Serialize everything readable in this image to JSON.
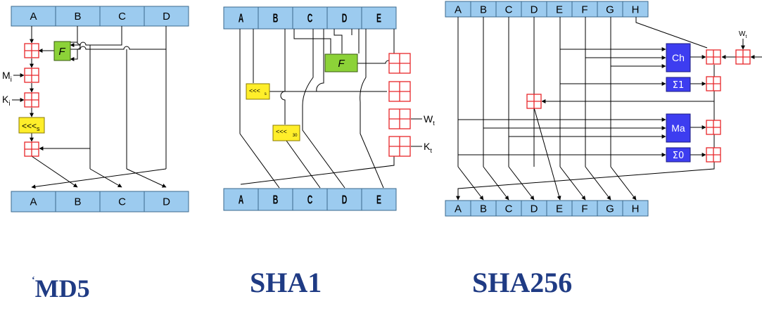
{
  "md5": {
    "caption": "MD5",
    "caption_prefix": "‘",
    "registers_top": [
      "A",
      "B",
      "C",
      "D"
    ],
    "registers_bottom": [
      "A",
      "B",
      "C",
      "D"
    ],
    "function_label": "F",
    "inputs": [
      "M",
      "K"
    ],
    "input_subscripts": [
      "i",
      "i"
    ],
    "rotate_label": "<<<",
    "rotate_sub": "s"
  },
  "sha1": {
    "caption": "SHA1",
    "registers_top": [
      "A",
      "B",
      "C",
      "D",
      "E"
    ],
    "registers_bottom": [
      "A",
      "B",
      "C",
      "D",
      "E"
    ],
    "function_label": "F",
    "rotate_s_label": "<<<",
    "rotate_s_sub": "s",
    "rotate_30_label": "<<<",
    "rotate_30_sub": "30",
    "inputs": [
      "W",
      "K"
    ],
    "input_subscripts": [
      "t",
      "t"
    ]
  },
  "sha256": {
    "caption": "SHA256",
    "registers_top": [
      "A",
      "B",
      "C",
      "D",
      "E",
      "F",
      "G",
      "H"
    ],
    "registers_bottom": [
      "A",
      "B",
      "C",
      "D",
      "E",
      "F",
      "G",
      "H"
    ],
    "functions": [
      "Ch",
      "Σ1",
      "Ma",
      "Σ0"
    ],
    "input": "W",
    "input_subscript": "t"
  },
  "colors": {
    "register_fill": "#9ccbef",
    "register_stroke": "#3b6a8c",
    "function_green": "#8cd238",
    "rotate_yellow": "#ffee2a",
    "sha256_block": "#3d3df0",
    "adder_red": "#e8262a",
    "caption_blue": "#1f3b84"
  }
}
